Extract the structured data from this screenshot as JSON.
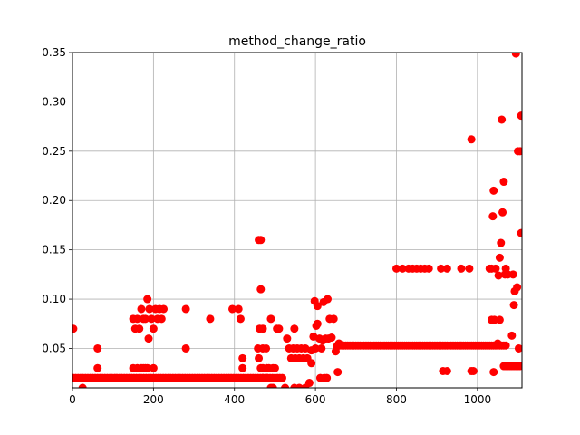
{
  "chart_data": {
    "type": "scatter",
    "title": "method_change_ratio",
    "xlabel": "",
    "ylabel": "",
    "xlim": [
      0,
      1110
    ],
    "ylim": [
      0.01,
      0.35
    ],
    "grid": true,
    "x_ticks": [
      0,
      200,
      400,
      600,
      800,
      1000
    ],
    "x_tick_labels": [
      "0",
      "200",
      "400",
      "600",
      "800",
      "1000"
    ],
    "y_ticks": [
      0.05,
      0.1,
      0.15,
      0.2,
      0.25,
      0.3,
      0.35
    ],
    "y_tick_labels": [
      "0.05",
      "0.10",
      "0.15",
      "0.20",
      "0.25",
      "0.30",
      "0.35"
    ],
    "marker_color": "#ff0000",
    "series": [
      {
        "points": [
          [
            2,
            0.07
          ],
          [
            25,
            0.01
          ],
          [
            62,
            0.05
          ],
          [
            62,
            0.03
          ],
          [
            150,
            0.08
          ],
          [
            155,
            0.07
          ],
          [
            160,
            0.08
          ],
          [
            165,
            0.07
          ],
          [
            170,
            0.09
          ],
          [
            175,
            0.08
          ],
          [
            180,
            0.08
          ],
          [
            185,
            0.1
          ],
          [
            188,
            0.06
          ],
          [
            190,
            0.09
          ],
          [
            195,
            0.08
          ],
          [
            200,
            0.07
          ],
          [
            205,
            0.09
          ],
          [
            210,
            0.08
          ],
          [
            215,
            0.09
          ],
          [
            220,
            0.08
          ],
          [
            225,
            0.09
          ],
          [
            150,
            0.03
          ],
          [
            160,
            0.03
          ],
          [
            170,
            0.03
          ],
          [
            175,
            0.03
          ],
          [
            180,
            0.03
          ],
          [
            185,
            0.03
          ],
          [
            200,
            0.03
          ],
          [
            280,
            0.09
          ],
          [
            280,
            0.05
          ],
          [
            340,
            0.08
          ],
          [
            395,
            0.09
          ],
          [
            410,
            0.09
          ],
          [
            415,
            0.08
          ],
          [
            420,
            0.04
          ],
          [
            420,
            0.03
          ],
          [
            460,
            0.16
          ],
          [
            465,
            0.16
          ],
          [
            465,
            0.11
          ],
          [
            462,
            0.07
          ],
          [
            470,
            0.07
          ],
          [
            458,
            0.05
          ],
          [
            470,
            0.05
          ],
          [
            478,
            0.05
          ],
          [
            460,
            0.04
          ],
          [
            465,
            0.03
          ],
          [
            470,
            0.03
          ],
          [
            480,
            0.03
          ],
          [
            485,
            0.03
          ],
          [
            495,
            0.03
          ],
          [
            500,
            0.03
          ],
          [
            490,
            0.08
          ],
          [
            505,
            0.07
          ],
          [
            510,
            0.07
          ],
          [
            470,
            0.02
          ],
          [
            480,
            0.02
          ],
          [
            490,
            0.01
          ],
          [
            495,
            0.01
          ],
          [
            525,
            0.01
          ],
          [
            530,
            0.06
          ],
          [
            535,
            0.05
          ],
          [
            540,
            0.04
          ],
          [
            545,
            0.05
          ],
          [
            548,
            0.07
          ],
          [
            550,
            0.04
          ],
          [
            555,
            0.05
          ],
          [
            560,
            0.04
          ],
          [
            565,
            0.05
          ],
          [
            570,
            0.04
          ],
          [
            575,
            0.05
          ],
          [
            580,
            0.04
          ],
          [
            585,
            0.015
          ],
          [
            590,
            0.035
          ],
          [
            590,
            0.048
          ],
          [
            595,
            0.062
          ],
          [
            598,
            0.098
          ],
          [
            600,
            0.05
          ],
          [
            602,
            0.073
          ],
          [
            605,
            0.093
          ],
          [
            605,
            0.075
          ],
          [
            610,
            0.06
          ],
          [
            612,
            0.02
          ],
          [
            615,
            0.05
          ],
          [
            618,
            0.058
          ],
          [
            620,
            0.097
          ],
          [
            622,
            0.02
          ],
          [
            625,
            0.06
          ],
          [
            628,
            0.02
          ],
          [
            630,
            0.1
          ],
          [
            632,
            0.06
          ],
          [
            635,
            0.08
          ],
          [
            640,
            0.061
          ],
          [
            645,
            0.08
          ],
          [
            650,
            0.047
          ],
          [
            653,
            0.052
          ],
          [
            655,
            0.026
          ],
          [
            658,
            0.055
          ],
          [
            548,
            0.01
          ],
          [
            560,
            0.01
          ],
          [
            575,
            0.01
          ],
          [
            800,
            0.131
          ],
          [
            815,
            0.131
          ],
          [
            830,
            0.131
          ],
          [
            840,
            0.131
          ],
          [
            850,
            0.131
          ],
          [
            860,
            0.131
          ],
          [
            870,
            0.131
          ],
          [
            880,
            0.131
          ],
          [
            910,
            0.131
          ],
          [
            925,
            0.131
          ],
          [
            960,
            0.131
          ],
          [
            980,
            0.131
          ],
          [
            915,
            0.027
          ],
          [
            925,
            0.027
          ],
          [
            985,
            0.262
          ],
          [
            985,
            0.027
          ],
          [
            990,
            0.027
          ],
          [
            1030,
            0.131
          ],
          [
            1035,
            0.131
          ],
          [
            1035,
            0.079
          ],
          [
            1038,
            0.184
          ],
          [
            1040,
            0.21
          ],
          [
            1040,
            0.026
          ],
          [
            1042,
            0.079
          ],
          [
            1045,
            0.131
          ],
          [
            1050,
            0.055
          ],
          [
            1052,
            0.124
          ],
          [
            1055,
            0.079
          ],
          [
            1055,
            0.142
          ],
          [
            1058,
            0.157
          ],
          [
            1060,
            0.282
          ],
          [
            1062,
            0.188
          ],
          [
            1065,
            0.219
          ],
          [
            1068,
            0.125
          ],
          [
            1070,
            0.131
          ],
          [
            1075,
            0.125
          ],
          [
            1080,
            0.032
          ],
          [
            1085,
            0.063
          ],
          [
            1088,
            0.125
          ],
          [
            1090,
            0.094
          ],
          [
            1092,
            0.108
          ],
          [
            1095,
            0.349
          ],
          [
            1098,
            0.112
          ],
          [
            1100,
            0.25
          ],
          [
            1102,
            0.05
          ],
          [
            1105,
            0.25
          ],
          [
            1108,
            0.286
          ],
          [
            1108,
            0.167
          ],
          [
            1065,
            0.032
          ],
          [
            1070,
            0.032
          ],
          [
            1075,
            0.032
          ],
          [
            1085,
            0.032
          ],
          [
            1090,
            0.032
          ],
          [
            1095,
            0.032
          ],
          [
            1100,
            0.032
          ],
          [
            1105,
            0.032
          ]
        ],
        "bands": [
          {
            "y": 0.02,
            "x_start": 2,
            "x_end": 520,
            "step": 6
          },
          {
            "y": 0.053,
            "x_start": 660,
            "x_end": 1070,
            "step": 5
          }
        ]
      }
    ]
  }
}
